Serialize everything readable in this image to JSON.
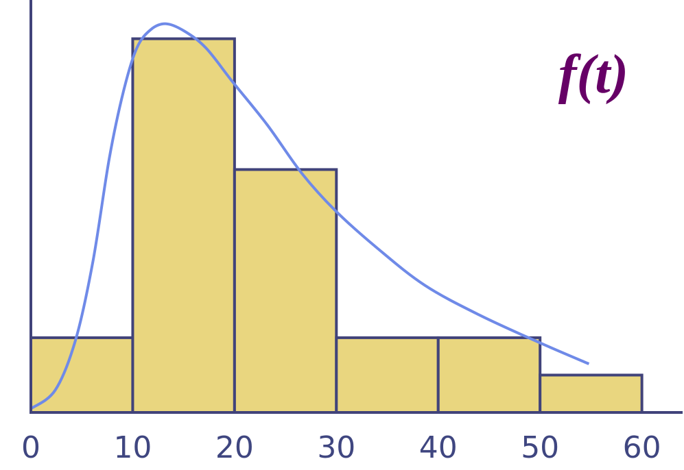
{
  "chart_data": {
    "type": "histogram",
    "bins": [
      0,
      10,
      20,
      30,
      40,
      50,
      60
    ],
    "values": [
      4,
      20,
      13,
      4,
      4,
      2
    ],
    "color": "#e9d67f",
    "edge_color": "#41437a",
    "xlim": [
      0,
      64
    ],
    "ylim": [
      0,
      22
    ],
    "xticks": [
      0,
      10,
      20,
      30,
      40,
      50,
      60
    ],
    "grid": false,
    "curve": {
      "color": "#6f8ae8",
      "x": [
        0,
        2.4,
        4.4,
        6.1,
        7.7,
        9.1,
        10.4,
        11.8,
        13.3,
        15.1,
        17.2,
        19.8,
        23.2,
        26.6,
        29.9,
        34.0,
        38.7,
        44.1,
        50.1,
        54.8
      ],
      "values": [
        0.2,
        1.2,
        3.9,
        8.1,
        13.6,
        17.2,
        19.5,
        20.5,
        20.8,
        20.4,
        19.5,
        17.7,
        15.4,
        12.8,
        10.8,
        8.8,
        6.8,
        5.2,
        3.7,
        2.6
      ]
    },
    "annotation": "f(t)"
  }
}
